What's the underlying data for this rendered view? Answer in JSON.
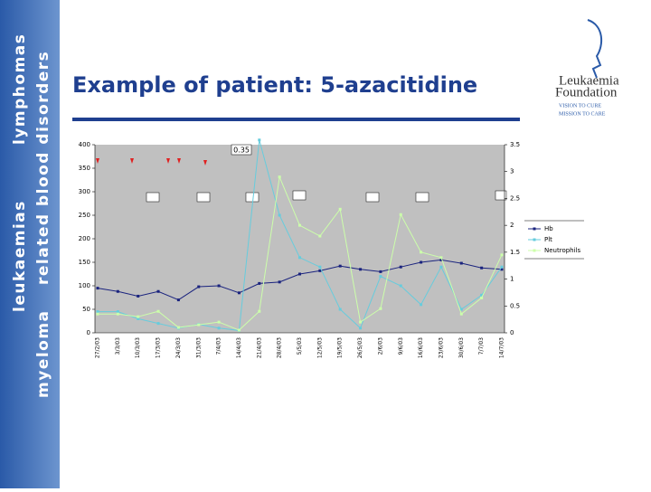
{
  "sidebar": {
    "lines": [
      "myeloma",
      "leukaemias",
      "related blood disorders",
      "lymphomas"
    ]
  },
  "header": {
    "title": "Example of patient: 5-azacitidine",
    "logo": [
      "Leukaemia",
      "Foundation",
      "VISION TO CURE",
      "MISSION TO CARE"
    ]
  },
  "chart_data": {
    "type": "line",
    "categories": [
      "27/2/03",
      "3/3/03",
      "10/3/03",
      "17/3/03",
      "24/3/03",
      "31/3/03",
      "7/4/03",
      "14/4/03",
      "21/4/03",
      "28/4/03",
      "5/5/03",
      "12/5/03",
      "19/5/03",
      "26/5/03",
      "2/6/03",
      "9/6/03",
      "16/6/03",
      "23/6/03",
      "30/6/03",
      "7/7/03",
      "14/7/03"
    ],
    "series": [
      {
        "name": "Hb",
        "color": "#1a237e",
        "values": [
          95,
          88,
          78,
          88,
          70,
          98,
          100,
          85,
          105,
          108,
          125,
          132,
          142,
          135,
          130,
          140,
          150,
          155,
          148,
          138,
          135
        ]
      },
      {
        "name": "Plt",
        "color": "#66ccdd",
        "values": [
          45,
          45,
          30,
          20,
          10,
          18,
          10,
          5,
          410,
          250,
          160,
          140,
          50,
          10,
          120,
          100,
          60,
          140,
          50,
          80,
          140
        ]
      },
      {
        "name": "Neutrophils",
        "color": "#ccffaa",
        "axis": "y2",
        "values": [
          0.35,
          0.35,
          0.3,
          0.4,
          0.1,
          0.15,
          0.2,
          0.05,
          0.4,
          2.9,
          2.0,
          1.8,
          2.3,
          0.2,
          0.45,
          2.2,
          1.5,
          1.4,
          0.35,
          0.65,
          1.45
        ]
      }
    ],
    "ylim": [
      0,
      400
    ],
    "yticks": [
      0,
      50,
      100,
      150,
      200,
      250,
      300,
      350,
      400
    ],
    "y2lim": [
      0,
      3.5
    ],
    "y2ticks": [
      0,
      0.5,
      1,
      1.5,
      2,
      2.5,
      3,
      3.5
    ],
    "annotation": "0.35"
  }
}
